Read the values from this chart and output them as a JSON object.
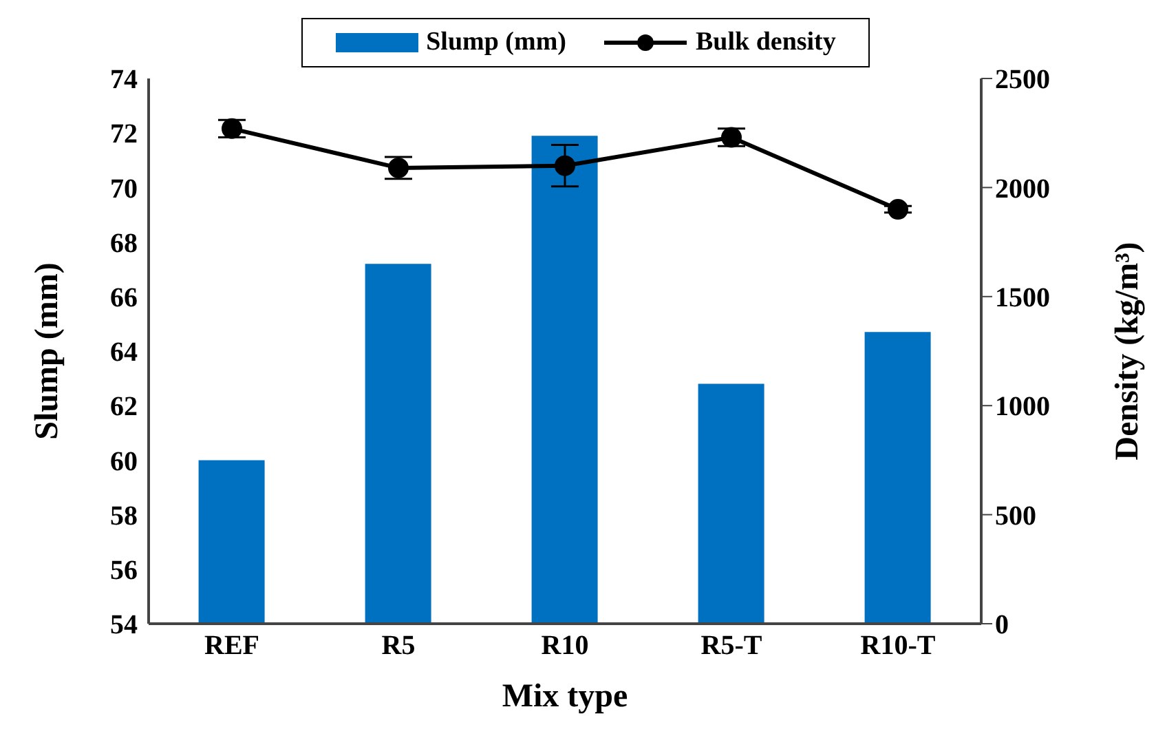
{
  "chart_data": {
    "type": "bar",
    "xlabel": "Mix type",
    "ylabel": "Slump (mm)",
    "y2label": "Density (kg/m³)",
    "categories": [
      "REF",
      "R5",
      "R10",
      "R5-T",
      "R10-T"
    ],
    "series": [
      {
        "name": "Slump (mm)",
        "color": "#0070c0",
        "values": [
          60,
          67.2,
          71.9,
          62.8,
          64.7
        ]
      },
      {
        "name": "Bulk density",
        "type": "line",
        "axis": "y2",
        "color": "#000000",
        "marker": "circle",
        "values": [
          2270,
          2090,
          2100,
          2230,
          1900
        ],
        "errors": [
          40,
          50,
          95,
          40,
          15
        ]
      }
    ],
    "ylim": [
      54,
      74
    ],
    "yticks": [
      54,
      56,
      58,
      60,
      62,
      64,
      66,
      68,
      70,
      72,
      74
    ],
    "y2lim": [
      0,
      2500
    ],
    "y2ticks": [
      0,
      500,
      1000,
      1500,
      2000,
      2500
    ],
    "legend": "top"
  }
}
